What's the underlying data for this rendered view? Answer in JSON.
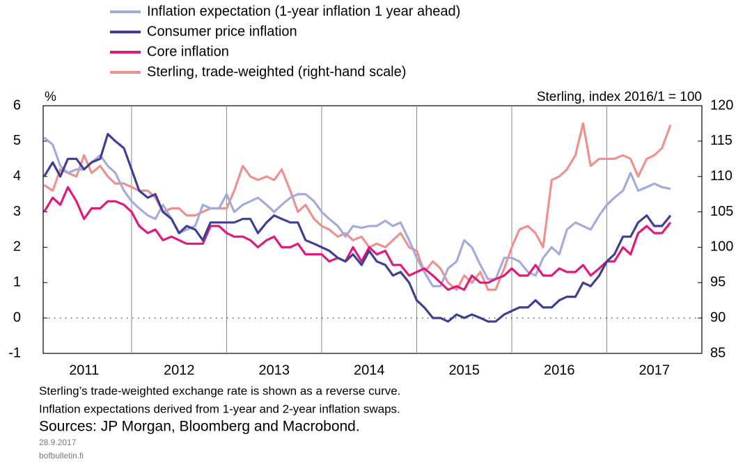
{
  "chart_data": {
    "type": "line",
    "ylabel": "%",
    "y2label": "Sterling, index 2016/1 = 100",
    "x": [
      2011.08,
      2011.17,
      2011.25,
      2011.33,
      2011.42,
      2011.5,
      2011.58,
      2011.67,
      2011.75,
      2011.83,
      2011.92,
      2012,
      2012.08,
      2012.17,
      2012.25,
      2012.33,
      2012.42,
      2012.5,
      2012.58,
      2012.67,
      2012.75,
      2012.83,
      2012.92,
      2013,
      2013.08,
      2013.17,
      2013.25,
      2013.33,
      2013.42,
      2013.5,
      2013.58,
      2013.67,
      2013.75,
      2013.83,
      2013.92,
      2014,
      2014.08,
      2014.17,
      2014.25,
      2014.33,
      2014.42,
      2014.5,
      2014.58,
      2014.67,
      2014.75,
      2014.83,
      2014.92,
      2015,
      2015.08,
      2015.17,
      2015.25,
      2015.33,
      2015.42,
      2015.5,
      2015.58,
      2015.67,
      2015.75,
      2015.83,
      2015.92,
      2016,
      2016.08,
      2016.17,
      2016.25,
      2016.33,
      2016.42,
      2016.5,
      2016.58,
      2016.67,
      2016.75,
      2016.83,
      2016.92,
      2017,
      2017.08,
      2017.17,
      2017.25,
      2017.33,
      2017.42,
      2017.5,
      2017.58,
      2017.67
    ],
    "series": [
      {
        "name": "Inflation expectation (1-year inflation 1 year ahead)",
        "color": "#a4aadb",
        "values": [
          5.1,
          4.9,
          4.3,
          4.1,
          4.2,
          4.2,
          4.4,
          4.6,
          4.3,
          4.1,
          3.6,
          3.3,
          3.1,
          2.9,
          2.8,
          3.2,
          2.8,
          2.4,
          2.5,
          2.6,
          3.2,
          3.1,
          3.1,
          3.5,
          3.0,
          3.2,
          3.3,
          3.4,
          3.2,
          3.0,
          3.2,
          3.4,
          3.5,
          3.5,
          3.3,
          3.0,
          2.8,
          2.6,
          2.3,
          2.6,
          2.55,
          2.6,
          2.6,
          2.75,
          2.6,
          2.7,
          2.2,
          1.7,
          1.3,
          0.9,
          0.9,
          1.4,
          1.6,
          2.2,
          2.0,
          1.5,
          1.1,
          1.1,
          1.7,
          1.7,
          1.6,
          1.3,
          1.2,
          1.7,
          2.0,
          1.8,
          2.5,
          2.7,
          2.6,
          2.5,
          2.9,
          3.2,
          3.4,
          3.6,
          4.1,
          3.6,
          3.7,
          3.8,
          3.7,
          3.65
        ]
      },
      {
        "name": "Consumer price inflation",
        "color": "#3d3f96",
        "values": [
          4.0,
          4.4,
          4.0,
          4.5,
          4.5,
          4.2,
          4.4,
          4.5,
          5.2,
          5.0,
          4.8,
          4.2,
          3.6,
          3.4,
          3.5,
          3.0,
          2.8,
          2.4,
          2.6,
          2.5,
          2.2,
          2.7,
          2.7,
          2.7,
          2.7,
          2.8,
          2.8,
          2.4,
          2.7,
          2.9,
          2.8,
          2.7,
          2.7,
          2.2,
          2.1,
          2.0,
          1.9,
          1.7,
          1.6,
          1.8,
          1.5,
          1.9,
          1.6,
          1.5,
          1.2,
          1.3,
          1.0,
          0.5,
          0.3,
          0.0,
          0.0,
          -0.1,
          0.1,
          0.0,
          0.1,
          0.0,
          -0.1,
          -0.1,
          0.1,
          0.2,
          0.3,
          0.3,
          0.5,
          0.3,
          0.3,
          0.5,
          0.6,
          0.6,
          1.0,
          0.9,
          1.2,
          1.6,
          1.8,
          2.3,
          2.3,
          2.7,
          2.9,
          2.6,
          2.6,
          2.9
        ]
      },
      {
        "name": "Core inflation",
        "color": "#e0197a",
        "values": [
          3.0,
          3.4,
          3.2,
          3.7,
          3.3,
          2.8,
          3.1,
          3.1,
          3.3,
          3.3,
          3.2,
          3.0,
          2.6,
          2.4,
          2.5,
          2.2,
          2.3,
          2.2,
          2.1,
          2.1,
          2.1,
          2.6,
          2.6,
          2.4,
          2.3,
          2.3,
          2.2,
          2.0,
          2.2,
          2.3,
          2.0,
          2.0,
          2.1,
          1.8,
          1.8,
          1.8,
          1.6,
          1.7,
          1.6,
          2.0,
          1.6,
          2.0,
          1.8,
          1.9,
          1.5,
          1.5,
          1.2,
          1.3,
          1.4,
          1.2,
          1.0,
          0.8,
          0.9,
          0.8,
          1.2,
          1.0,
          1.0,
          1.1,
          1.2,
          1.4,
          1.2,
          1.2,
          1.5,
          1.2,
          1.2,
          1.4,
          1.3,
          1.3,
          1.5,
          1.2,
          1.4,
          1.6,
          1.6,
          2.0,
          1.8,
          2.4,
          2.6,
          2.4,
          2.4,
          2.7
        ]
      },
      {
        "name": "Sterling, trade-weighted (right-hand scale)",
        "color": "#f0908e",
        "axis": "y2",
        "values": [
          108.8,
          108,
          111,
          110.5,
          110,
          113,
          110.5,
          111.5,
          110,
          109,
          109,
          108.5,
          108,
          108,
          107,
          105,
          105.5,
          105.5,
          104.5,
          104.5,
          105,
          105.5,
          105.5,
          105.5,
          108,
          111.5,
          110,
          109.5,
          110,
          109.5,
          111,
          108,
          105,
          106,
          104,
          103,
          102.5,
          101.5,
          102,
          101,
          101.5,
          100,
          100.5,
          100,
          101,
          102,
          100,
          99.5,
          96.5,
          98,
          97,
          95,
          94,
          96,
          95,
          96.5,
          94,
          94,
          97,
          100,
          102.5,
          103,
          102,
          100,
          109.5,
          110,
          111,
          113,
          117.5,
          111.5,
          112.5,
          112.5,
          112.5,
          113,
          112.5,
          110,
          112.5,
          113,
          114,
          117.3
        ]
      }
    ],
    "xlim": [
      2011.07,
      2018.0
    ],
    "xticks": [
      {
        "value": 2011.5,
        "label": "2011"
      },
      {
        "value": 2012.5,
        "label": "2012"
      },
      {
        "value": 2013.5,
        "label": "2013"
      },
      {
        "value": 2014.5,
        "label": "2014"
      },
      {
        "value": 2015.5,
        "label": "2015"
      },
      {
        "value": 2016.5,
        "label": "2016"
      },
      {
        "value": 2017.5,
        "label": "2017"
      }
    ],
    "xgrid": [
      2012,
      2013,
      2014,
      2015,
      2016,
      2017
    ],
    "ylim": [
      -1,
      6
    ],
    "yticks": [
      -1,
      0,
      1,
      2,
      3,
      4,
      5,
      6
    ],
    "y2lim": [
      85,
      120
    ],
    "y2ticks": [
      85,
      90,
      95,
      100,
      105,
      110,
      115,
      120
    ],
    "notes": [
      "Sterling’s trade-weighted exchange rate is shown as a reverse curve.",
      "Inflation expectations derived from 1-year and 2-year inflation swaps."
    ],
    "sources": "Sources: JP Morgan, Bloomberg and Macrobond.",
    "date": "28.9.2017",
    "site": "bofbulletin.fi"
  }
}
